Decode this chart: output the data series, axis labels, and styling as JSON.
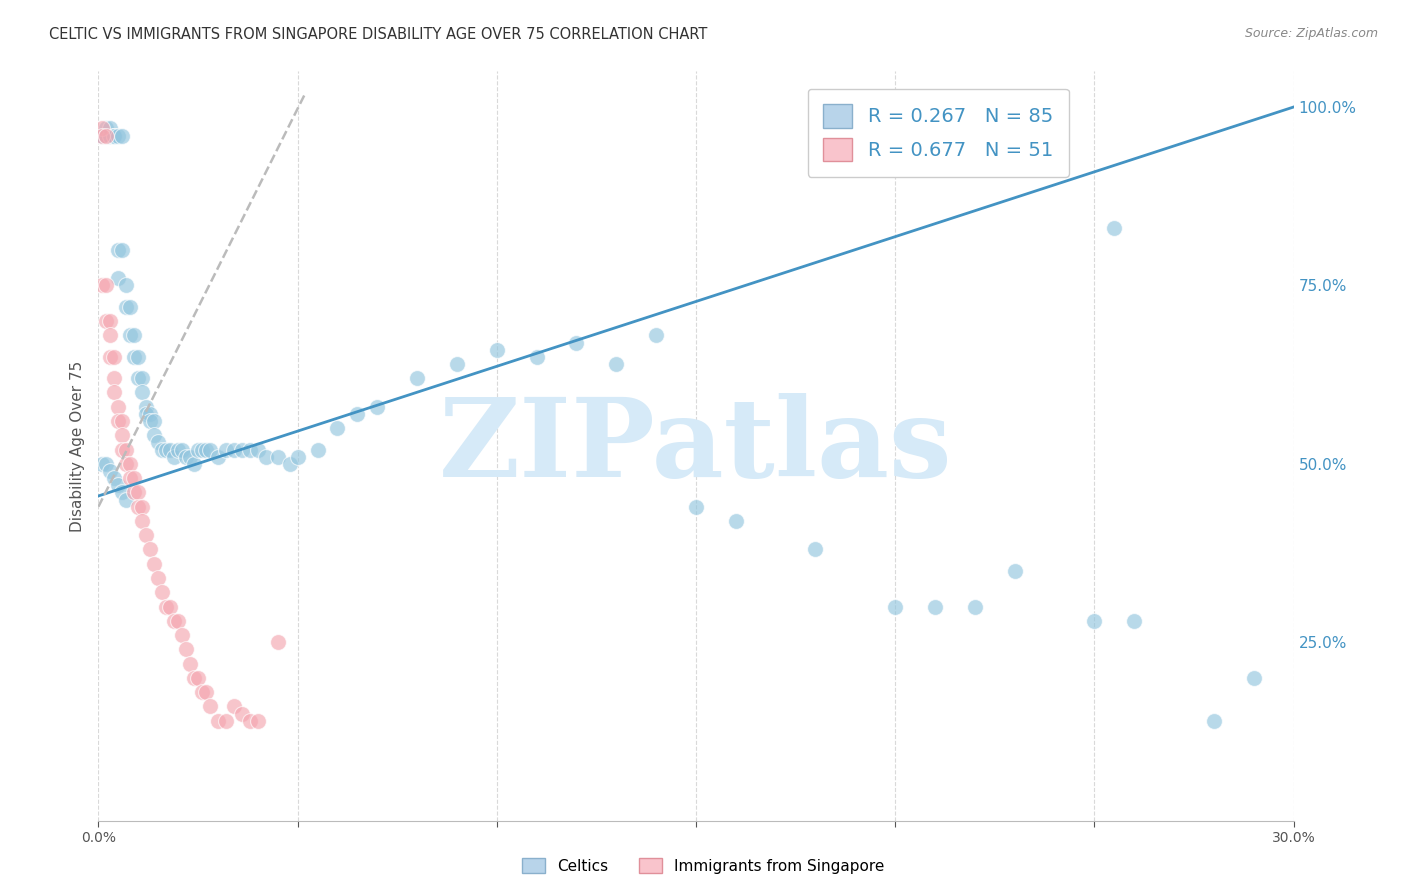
{
  "title": "CELTIC VS IMMIGRANTS FROM SINGAPORE DISABILITY AGE OVER 75 CORRELATION CHART",
  "source": "Source: ZipAtlas.com",
  "ylabel": "Disability Age Over 75",
  "xlim": [
    0.0,
    0.3
  ],
  "ylim": [
    0.0,
    1.05
  ],
  "xticks": [
    0.0,
    0.05,
    0.1,
    0.15,
    0.2,
    0.25,
    0.3
  ],
  "ytick_positions_right": [
    0.25,
    0.5,
    0.75,
    1.0
  ],
  "ytick_labels_right": [
    "25.0%",
    "50.0%",
    "75.0%",
    "100.0%"
  ],
  "blue_color": "#92c5de",
  "pink_color": "#f4a6b0",
  "blue_line_color": "#4393c3",
  "pink_line_color": "#d6604d",
  "pink_line_style": "--",
  "watermark": "ZIPatlas",
  "watermark_color": "#d6eaf8",
  "watermark_fontsize": 80,
  "legend_label_celtics": "Celtics",
  "legend_label_singapore": "Immigrants from Singapore",
  "legend_blue_r": "R = 0.267",
  "legend_blue_n": "N = 85",
  "legend_pink_r": "R = 0.677",
  "legend_pink_n": "N = 51",
  "blue_trend_x": [
    0.0,
    0.3
  ],
  "blue_trend_y": [
    0.455,
    1.0
  ],
  "pink_trend_x": [
    0.0,
    0.052
  ],
  "pink_trend_y": [
    0.44,
    1.02
  ],
  "background_color": "#ffffff",
  "grid_color": "#d9d9d9",
  "celtics_x": [
    0.001,
    0.001,
    0.002,
    0.002,
    0.003,
    0.003,
    0.003,
    0.004,
    0.004,
    0.004,
    0.005,
    0.005,
    0.005,
    0.006,
    0.006,
    0.007,
    0.007,
    0.008,
    0.008,
    0.009,
    0.009,
    0.01,
    0.01,
    0.011,
    0.011,
    0.012,
    0.012,
    0.013,
    0.013,
    0.014,
    0.014,
    0.015,
    0.016,
    0.017,
    0.018,
    0.019,
    0.02,
    0.021,
    0.022,
    0.023,
    0.024,
    0.025,
    0.026,
    0.027,
    0.028,
    0.03,
    0.032,
    0.034,
    0.036,
    0.038,
    0.04,
    0.042,
    0.045,
    0.048,
    0.05,
    0.055,
    0.06,
    0.065,
    0.07,
    0.08,
    0.09,
    0.1,
    0.11,
    0.12,
    0.13,
    0.14,
    0.15,
    0.16,
    0.18,
    0.2,
    0.21,
    0.22,
    0.23,
    0.25,
    0.26,
    0.28,
    0.29,
    0.001,
    0.002,
    0.003,
    0.004,
    0.005,
    0.006,
    0.007,
    0.255
  ],
  "celtics_y": [
    0.96,
    0.96,
    0.96,
    0.97,
    0.96,
    0.96,
    0.97,
    0.96,
    0.96,
    0.96,
    0.96,
    0.8,
    0.76,
    0.96,
    0.8,
    0.75,
    0.72,
    0.72,
    0.68,
    0.68,
    0.65,
    0.65,
    0.62,
    0.62,
    0.6,
    0.58,
    0.57,
    0.57,
    0.56,
    0.56,
    0.54,
    0.53,
    0.52,
    0.52,
    0.52,
    0.51,
    0.52,
    0.52,
    0.51,
    0.51,
    0.5,
    0.52,
    0.52,
    0.52,
    0.52,
    0.51,
    0.52,
    0.52,
    0.52,
    0.52,
    0.52,
    0.51,
    0.51,
    0.5,
    0.51,
    0.52,
    0.55,
    0.57,
    0.58,
    0.62,
    0.64,
    0.66,
    0.65,
    0.67,
    0.64,
    0.68,
    0.44,
    0.42,
    0.38,
    0.3,
    0.3,
    0.3,
    0.35,
    0.28,
    0.28,
    0.14,
    0.2,
    0.5,
    0.5,
    0.49,
    0.48,
    0.47,
    0.46,
    0.45,
    0.83
  ],
  "singapore_x": [
    0.001,
    0.001,
    0.001,
    0.002,
    0.002,
    0.002,
    0.003,
    0.003,
    0.003,
    0.004,
    0.004,
    0.004,
    0.005,
    0.005,
    0.006,
    0.006,
    0.006,
    0.007,
    0.007,
    0.008,
    0.008,
    0.009,
    0.009,
    0.01,
    0.01,
    0.011,
    0.011,
    0.012,
    0.013,
    0.014,
    0.015,
    0.016,
    0.017,
    0.018,
    0.019,
    0.02,
    0.021,
    0.022,
    0.023,
    0.024,
    0.025,
    0.026,
    0.027,
    0.028,
    0.03,
    0.032,
    0.034,
    0.036,
    0.038,
    0.04,
    0.045
  ],
  "singapore_y": [
    0.97,
    0.96,
    0.75,
    0.96,
    0.75,
    0.7,
    0.7,
    0.68,
    0.65,
    0.65,
    0.62,
    0.6,
    0.58,
    0.56,
    0.56,
    0.54,
    0.52,
    0.52,
    0.5,
    0.5,
    0.48,
    0.48,
    0.46,
    0.46,
    0.44,
    0.44,
    0.42,
    0.4,
    0.38,
    0.36,
    0.34,
    0.32,
    0.3,
    0.3,
    0.28,
    0.28,
    0.26,
    0.24,
    0.22,
    0.2,
    0.2,
    0.18,
    0.18,
    0.16,
    0.14,
    0.14,
    0.16,
    0.15,
    0.14,
    0.14,
    0.25
  ]
}
